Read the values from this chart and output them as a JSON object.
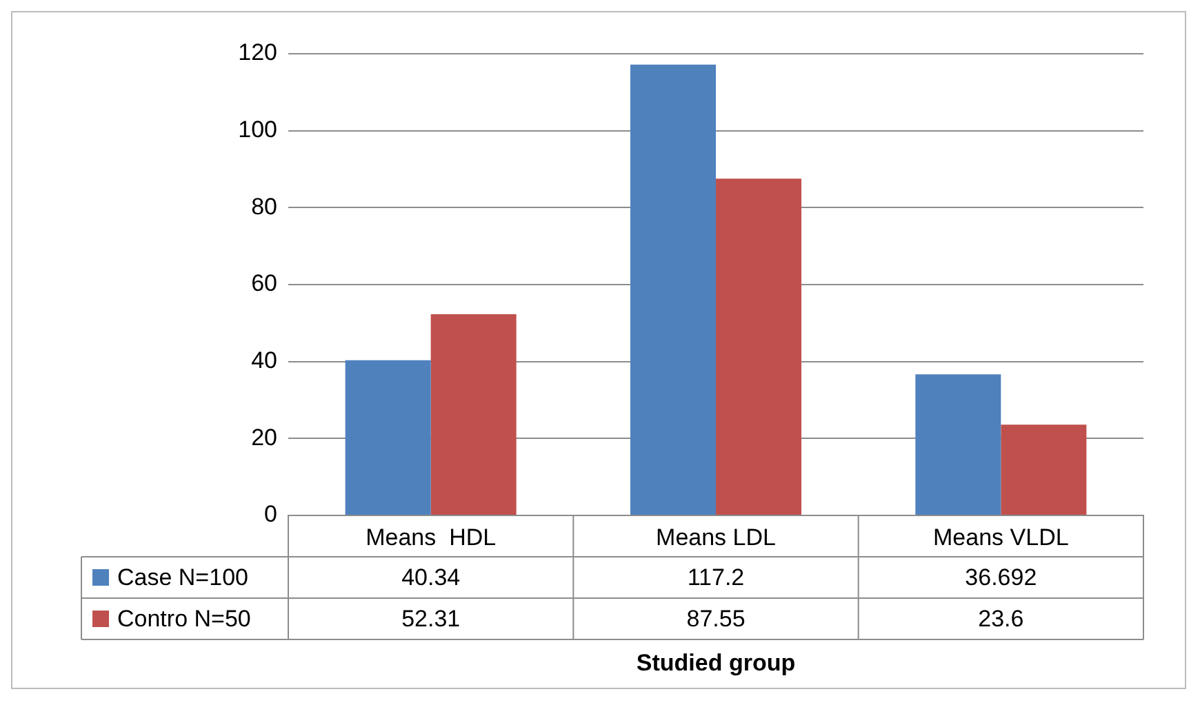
{
  "chart_data": {
    "type": "bar",
    "xlabel": "Studied group",
    "categories": [
      "Means  HDL",
      "Means LDL",
      "Means VLDL"
    ],
    "series": [
      {
        "name": "Case N=100",
        "color": "#4f81bd",
        "values": [
          40.34,
          117.2,
          36.692
        ]
      },
      {
        "name": "Contro N=50",
        "color": "#c0504d",
        "values": [
          52.31,
          87.55,
          23.6
        ]
      }
    ],
    "ylim": [
      0,
      120
    ],
    "yticks": [
      0,
      20,
      40,
      60,
      80,
      100,
      120
    ],
    "grid": "y",
    "legend": "bottom",
    "data_labels": true
  }
}
